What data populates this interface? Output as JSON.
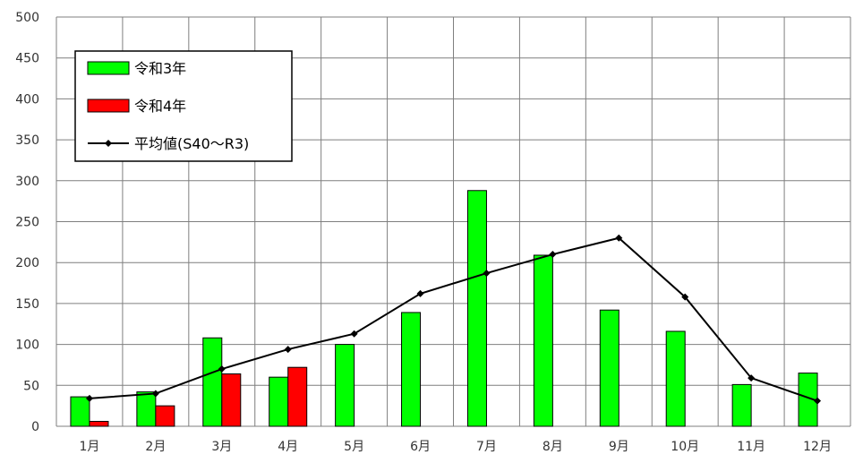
{
  "chart_data": {
    "type": "bar",
    "categories": [
      "1月",
      "2月",
      "3月",
      "4月",
      "5月",
      "6月",
      "7月",
      "8月",
      "9月",
      "10月",
      "11月",
      "12月"
    ],
    "series": [
      {
        "name": "令和3年",
        "kind": "bar",
        "color": "#00ff00",
        "values": [
          36,
          42,
          108,
          60,
          100,
          139,
          288,
          209,
          142,
          116,
          51,
          65
        ]
      },
      {
        "name": "令和4年",
        "kind": "bar",
        "color": "#ff0000",
        "values": [
          6,
          25,
          64,
          72,
          null,
          null,
          null,
          null,
          null,
          null,
          null,
          null
        ]
      },
      {
        "name": "平均値(S40～R3)",
        "kind": "line",
        "color": "#000000",
        "values": [
          34,
          40,
          70,
          94,
          113,
          162,
          187,
          210,
          230,
          158,
          59,
          31
        ]
      }
    ],
    "yticks": [
      "0",
      "50",
      "100",
      "150",
      "200",
      "250",
      "300",
      "350",
      "400",
      "450",
      "500"
    ],
    "ylim": [
      0,
      500
    ],
    "xlabel": "",
    "ylabel": "",
    "grid": true,
    "legend_position": "top-left"
  }
}
